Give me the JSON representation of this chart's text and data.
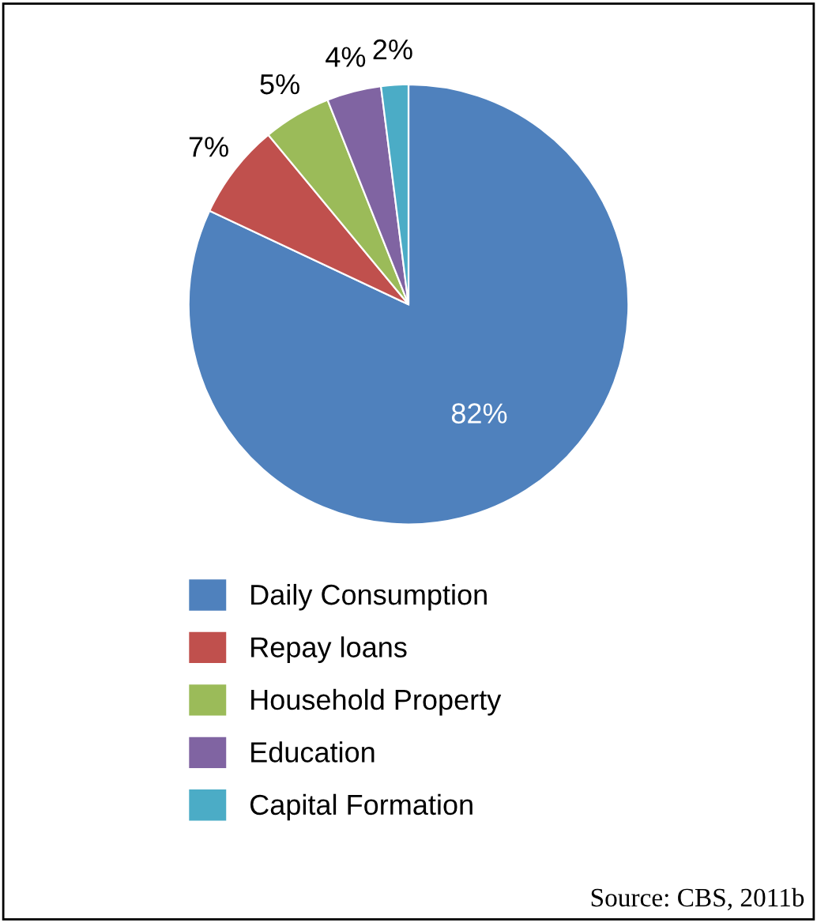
{
  "chart_data": {
    "type": "pie",
    "categories": [
      "Daily Consumption",
      "Repay loans",
      "Household Property",
      "Education",
      "Capital Formation"
    ],
    "values": [
      82,
      7,
      5,
      4,
      2
    ],
    "colors": [
      "#4f81bd",
      "#c0504d",
      "#9bbb59",
      "#8064a2",
      "#4bacc6"
    ],
    "value_labels": [
      "82%",
      "7%",
      "5%",
      "4%",
      "2%"
    ],
    "legend": "bottom",
    "annotations": [
      "Source: CBS, 2011b"
    ]
  }
}
